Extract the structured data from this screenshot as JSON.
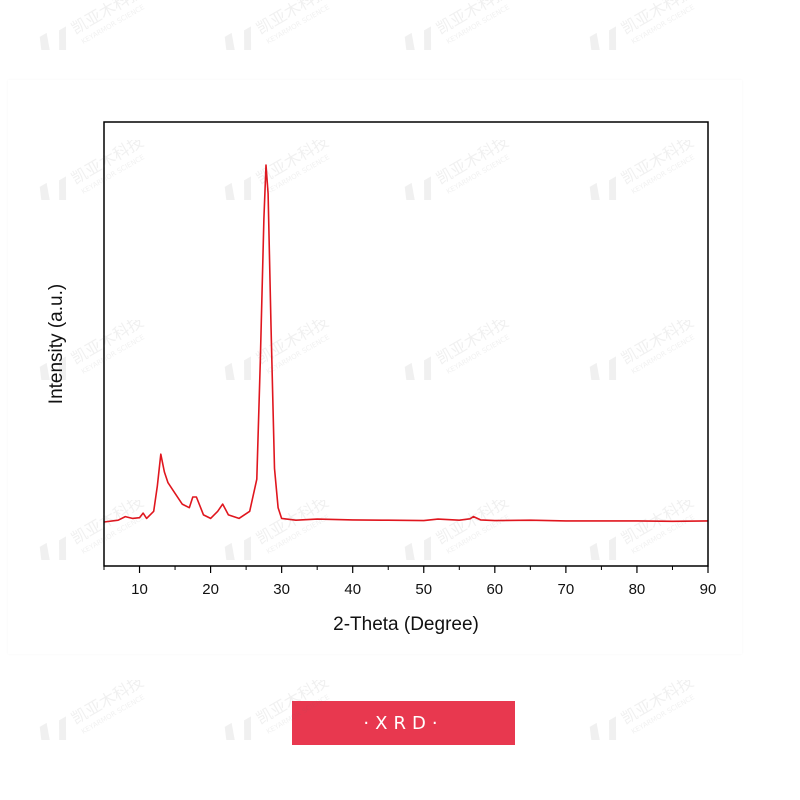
{
  "badge": {
    "label": "·XRD·",
    "color": "#e8384f"
  },
  "watermark": {
    "text": "凯亚木科技",
    "subtext": "KEYARMOR SCIENCE"
  },
  "chart_data": {
    "type": "line",
    "title": "",
    "xlabel": "2-Theta (Degree)",
    "ylabel": "Intensity (a.u.)",
    "xlim": [
      5,
      90
    ],
    "ylim": [
      0,
      100
    ],
    "x_ticks": [
      10,
      20,
      30,
      40,
      50,
      60,
      70,
      80,
      90
    ],
    "y_ticks_shown": false,
    "grid": false,
    "legend": "none",
    "line_color": "#e0161e",
    "series": [
      {
        "x": [
          5,
          7,
          8,
          9,
          10,
          10.5,
          11,
          12,
          12.5,
          13,
          13.5,
          14,
          15,
          16,
          17,
          17.5,
          18,
          19,
          20,
          21,
          21.7,
          22.5,
          24,
          25.5,
          26.5,
          27,
          27.5,
          27.8,
          28.1,
          28.5,
          29,
          29.5,
          30,
          32,
          35,
          40,
          45,
          50,
          52,
          55,
          56.5,
          57,
          58,
          60,
          65,
          70,
          75,
          80,
          85,
          90
        ],
        "y": [
          0,
          0.5,
          1.5,
          1,
          1.2,
          2.5,
          1,
          3,
          10,
          19,
          14,
          11,
          8,
          5,
          4,
          7,
          7,
          2,
          1,
          3,
          5,
          2,
          1,
          3,
          12,
          45,
          85,
          100,
          92,
          55,
          15,
          4,
          1,
          0.5,
          0.8,
          0.6,
          0.5,
          0.4,
          0.8,
          0.5,
          0.9,
          1.5,
          0.6,
          0.4,
          0.5,
          0.3,
          0.3,
          0.3,
          0.2,
          0.3
        ]
      }
    ]
  }
}
